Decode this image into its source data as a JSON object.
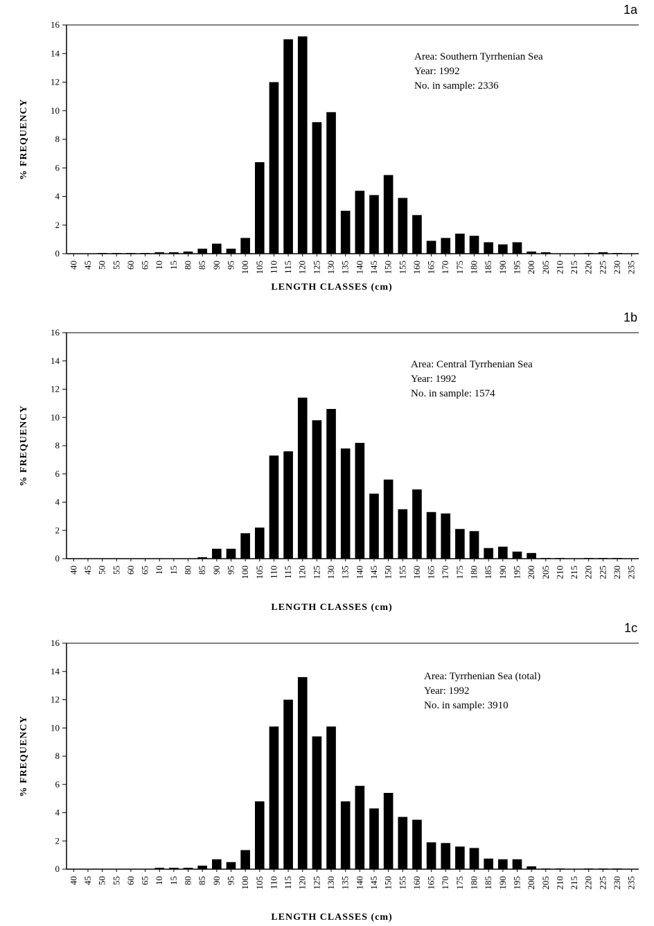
{
  "chart_data": [
    {
      "type": "bar",
      "panel_label": "1a",
      "xlabel": "LENGTH CLASSES (cm)",
      "ylabel": "% FREQUENCY",
      "ylim": [
        0,
        16
      ],
      "yticks": [
        0,
        2,
        4,
        6,
        8,
        10,
        12,
        14,
        16
      ],
      "grid": false,
      "info": {
        "area": "Area: Southern Tyrrhenian Sea",
        "year": "Year: 1992",
        "sample": "No. in sample: 2336"
      },
      "categories": [
        "40",
        "45",
        "50",
        "55",
        "60",
        "65",
        "10",
        "15",
        "80",
        "85",
        "90",
        "95",
        "100",
        "105",
        "110",
        "115",
        "120",
        "125",
        "130",
        "135",
        "140",
        "145",
        "150",
        "155",
        "160",
        "165",
        "170",
        "175",
        "180",
        "185",
        "190",
        "195",
        "200",
        "205",
        "210",
        "215",
        "220",
        "225",
        "230",
        "235"
      ],
      "values": [
        0,
        0,
        0.05,
        0.05,
        0.05,
        0.05,
        0.1,
        0.1,
        0.15,
        0.35,
        0.7,
        0.35,
        1.1,
        6.4,
        12.0,
        15.0,
        15.2,
        9.2,
        9.9,
        3.0,
        4.4,
        4.1,
        5.5,
        3.9,
        2.7,
        0.9,
        1.1,
        1.4,
        1.25,
        0.8,
        0.65,
        0.8,
        0.15,
        0.1,
        0,
        0,
        0.05,
        0.1,
        0.05,
        0
      ]
    },
    {
      "type": "bar",
      "panel_label": "1b",
      "xlabel": "LENGTH CLASSES (cm)",
      "ylabel": "% FREQUENCY",
      "ylim": [
        0,
        16
      ],
      "yticks": [
        0,
        2,
        4,
        6,
        8,
        10,
        12,
        14,
        16
      ],
      "grid": false,
      "info": {
        "area": "Area: Central Tyrrhenian Sea",
        "year": "Year: 1992",
        "sample": "No. in sample: 1574"
      },
      "categories": [
        "40",
        "45",
        "50",
        "55",
        "60",
        "65",
        "10",
        "15",
        "80",
        "85",
        "90",
        "95",
        "100",
        "105",
        "110",
        "115",
        "120",
        "125",
        "130",
        "135",
        "140",
        "145",
        "150",
        "155",
        "160",
        "165",
        "170",
        "175",
        "180",
        "185",
        "190",
        "195",
        "200",
        "205",
        "210",
        "215",
        "220",
        "225",
        "230",
        "235"
      ],
      "values": [
        0,
        0,
        0,
        0,
        0,
        0,
        0,
        0,
        0,
        0.1,
        0.7,
        0.7,
        1.8,
        2.2,
        7.3,
        7.6,
        11.4,
        9.8,
        10.6,
        7.8,
        8.2,
        4.6,
        5.6,
        3.5,
        4.9,
        3.3,
        3.2,
        2.1,
        1.95,
        0.75,
        0.85,
        0.5,
        0.4,
        0.05,
        0.05,
        0,
        0.05,
        0.05,
        0.05,
        0
      ]
    },
    {
      "type": "bar",
      "panel_label": "1c",
      "xlabel": "LENGTH CLASSES (cm)",
      "ylabel": "% FREQUENCY",
      "ylim": [
        0,
        16
      ],
      "yticks": [
        0,
        2,
        4,
        6,
        8,
        10,
        12,
        14,
        16
      ],
      "grid": false,
      "info": {
        "area": "Area: Tyrrhenian Sea (total)",
        "year": "Year: 1992",
        "sample": "No. in sample: 3910"
      },
      "categories": [
        "40",
        "45",
        "50",
        "55",
        "60",
        "65",
        "10",
        "15",
        "80",
        "85",
        "90",
        "95",
        "100",
        "105",
        "110",
        "115",
        "120",
        "125",
        "130",
        "135",
        "140",
        "145",
        "150",
        "155",
        "160",
        "165",
        "170",
        "175",
        "180",
        "185",
        "190",
        "195",
        "200",
        "205",
        "210",
        "215",
        "220",
        "225",
        "230",
        "235"
      ],
      "values": [
        0,
        0,
        0,
        0,
        0,
        0,
        0.1,
        0.1,
        0.1,
        0.25,
        0.7,
        0.5,
        1.35,
        4.8,
        10.1,
        12.0,
        13.6,
        9.4,
        10.1,
        4.8,
        5.9,
        4.3,
        5.4,
        3.7,
        3.5,
        1.9,
        1.85,
        1.6,
        1.5,
        0.75,
        0.7,
        0.7,
        0.2,
        0.05,
        0.05,
        0,
        0.05,
        0.05,
        0.05,
        0
      ]
    }
  ]
}
